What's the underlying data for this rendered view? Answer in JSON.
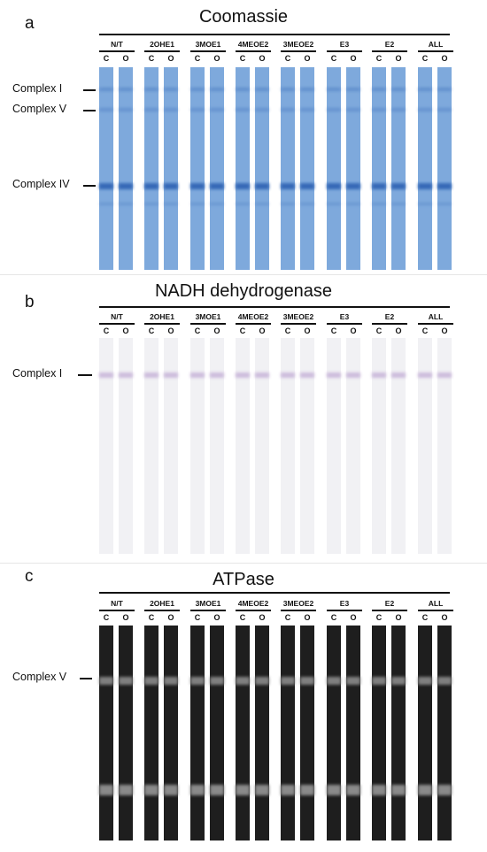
{
  "groups": [
    "N/T",
    "2OHE1",
    "3MOE1",
    "4MEOE2",
    "3MEOE2",
    "E3",
    "E2",
    "ALL"
  ],
  "lanes": [
    "C",
    "O"
  ],
  "panels": [
    {
      "letter": "a",
      "title": "Coomassie",
      "markers": [
        "Complex I",
        "Complex V",
        "Complex IV"
      ]
    },
    {
      "letter": "b",
      "title": "NADH dehydrogenase",
      "markers": [
        "Complex I"
      ]
    },
    {
      "letter": "c",
      "title": "ATPase",
      "markers": [
        "Complex V"
      ]
    }
  ],
  "colors": {
    "coomassie_lane": "#7ea9dc",
    "coomassie_band": "#2e62b3",
    "nadh_lane": "#f1f1f4",
    "nadh_band": "#c9b6da",
    "atpase_lane": "#1e1e1e",
    "atpase_band": "#8a8a8a"
  }
}
